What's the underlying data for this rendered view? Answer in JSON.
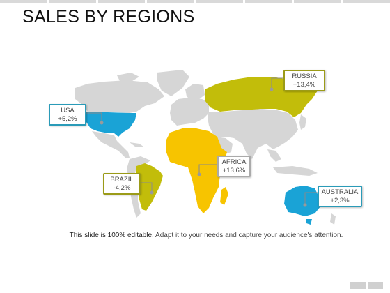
{
  "slide": {
    "title": "SALES BY REGIONS",
    "caption_lead": "This slide is 100% editable.",
    "caption_rest": " Adapt it to your needs and capture your audience's attention."
  },
  "colors": {
    "land": "#d6d6d6",
    "highlight_blue": "#1aa3d6",
    "highlight_olive": "#c2bd0a",
    "highlight_yellow": "#f7c400"
  },
  "regions": [
    {
      "id": "usa",
      "name": "USA",
      "value": "+5,2%",
      "color": "#1aa3d6"
    },
    {
      "id": "russia",
      "name": "RUSSIA",
      "value": "+13,4%",
      "color": "#c2bd0a"
    },
    {
      "id": "africa",
      "name": "AFRICA",
      "value": "+13,6%",
      "color": "#f7c400"
    },
    {
      "id": "brazil",
      "name": "BRAZIL",
      "value": "-4,2%",
      "color": "#c2bd0a"
    },
    {
      "id": "australia",
      "name": "AUSTRALIA",
      "value": "+2,3%",
      "color": "#1aa3d6"
    }
  ]
}
